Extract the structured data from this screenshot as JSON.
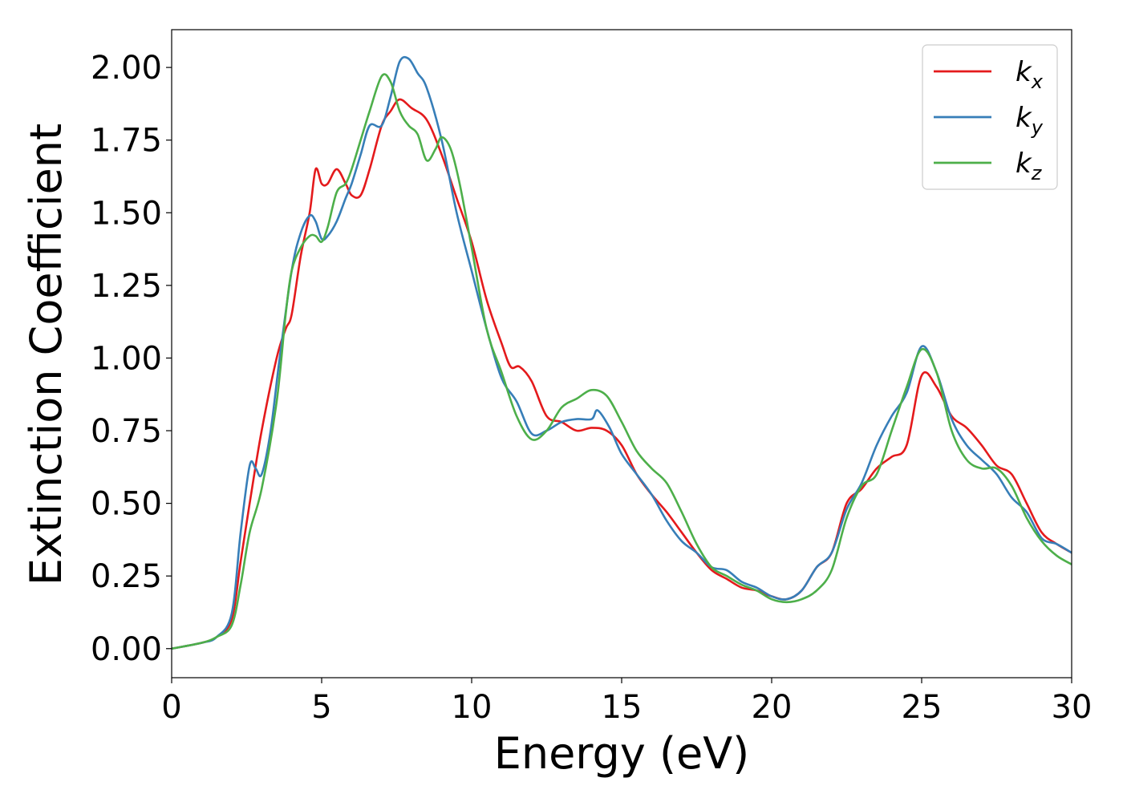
{
  "chart_data": {
    "type": "line",
    "xlabel": "Energy (eV)",
    "ylabel": "Extinction Coefficient",
    "xlim": [
      0,
      30
    ],
    "ylim": [
      -0.1,
      2.13
    ],
    "xticks": [
      0,
      5,
      10,
      15,
      20,
      25,
      30
    ],
    "xtick_labels": [
      "0",
      "5",
      "10",
      "15",
      "20",
      "25",
      "30"
    ],
    "yticks": [
      0,
      0.25,
      0.5,
      0.75,
      1.0,
      1.25,
      1.5,
      1.75,
      2.0
    ],
    "ytick_labels": [
      "0.00",
      "0.25",
      "0.50",
      "0.75",
      "1.00",
      "1.25",
      "1.50",
      "1.75",
      "2.00"
    ],
    "grid": false,
    "legend_position": "top-right",
    "series": [
      {
        "name": "k",
        "name_sub": "x",
        "color": "#e41a1c",
        "x": [
          0,
          1,
          1.5,
          2,
          2.3,
          2.6,
          3,
          3.5,
          3.8,
          4,
          4.3,
          4.6,
          4.8,
          5,
          5.2,
          5.5,
          5.8,
          6,
          6.3,
          6.6,
          7,
          7.3,
          7.6,
          8,
          8.5,
          9,
          9.5,
          10,
          10.5,
          11,
          11.3,
          11.6,
          12,
          12.5,
          13,
          13.5,
          14,
          14.5,
          15,
          15.5,
          16,
          16.5,
          17,
          17.5,
          18,
          18.5,
          19,
          19.5,
          20,
          20.5,
          21,
          21.5,
          22,
          22.5,
          23,
          23.5,
          24,
          24.5,
          25,
          25.5,
          26,
          26.5,
          27,
          27.5,
          28,
          28.5,
          29,
          29.5,
          30
        ],
        "y": [
          0,
          0.02,
          0.04,
          0.1,
          0.3,
          0.5,
          0.75,
          1.0,
          1.1,
          1.15,
          1.35,
          1.5,
          1.65,
          1.6,
          1.6,
          1.65,
          1.6,
          1.56,
          1.56,
          1.65,
          1.8,
          1.85,
          1.89,
          1.86,
          1.82,
          1.7,
          1.55,
          1.4,
          1.2,
          1.05,
          0.97,
          0.97,
          0.92,
          0.8,
          0.78,
          0.75,
          0.76,
          0.75,
          0.7,
          0.6,
          0.53,
          0.47,
          0.4,
          0.33,
          0.27,
          0.24,
          0.21,
          0.2,
          0.18,
          0.17,
          0.2,
          0.28,
          0.33,
          0.5,
          0.55,
          0.62,
          0.66,
          0.7,
          0.94,
          0.9,
          0.8,
          0.76,
          0.7,
          0.63,
          0.6,
          0.5,
          0.4,
          0.36,
          0.33
        ]
      },
      {
        "name": "k",
        "name_sub": "y",
        "color": "#377eb8",
        "x": [
          0,
          1,
          1.5,
          2,
          2.3,
          2.6,
          2.8,
          3,
          3.3,
          3.6,
          4,
          4.3,
          4.6,
          4.8,
          5,
          5.2,
          5.5,
          5.8,
          6,
          6.3,
          6.6,
          7,
          7.3,
          7.6,
          7.9,
          8.2,
          8.5,
          9,
          9.5,
          10,
          10.5,
          11,
          11.5,
          12,
          12.5,
          13,
          13.5,
          14,
          14.2,
          14.6,
          15,
          15.5,
          16,
          16.5,
          17,
          17.5,
          18,
          18.5,
          19,
          19.5,
          20,
          20.5,
          21,
          21.5,
          22,
          22.5,
          23,
          23.5,
          24,
          24.5,
          25,
          25.5,
          26,
          26.5,
          27,
          27.5,
          28,
          28.5,
          29,
          29.5,
          30
        ],
        "y": [
          0,
          0.02,
          0.04,
          0.12,
          0.4,
          0.63,
          0.62,
          0.6,
          0.75,
          1.0,
          1.3,
          1.43,
          1.49,
          1.47,
          1.41,
          1.42,
          1.47,
          1.55,
          1.6,
          1.7,
          1.8,
          1.8,
          1.9,
          2.02,
          2.03,
          1.98,
          1.93,
          1.75,
          1.5,
          1.3,
          1.1,
          0.93,
          0.85,
          0.74,
          0.75,
          0.78,
          0.79,
          0.79,
          0.82,
          0.76,
          0.67,
          0.6,
          0.53,
          0.44,
          0.37,
          0.33,
          0.28,
          0.27,
          0.23,
          0.21,
          0.18,
          0.17,
          0.2,
          0.28,
          0.33,
          0.48,
          0.57,
          0.7,
          0.8,
          0.88,
          1.04,
          0.95,
          0.79,
          0.7,
          0.65,
          0.6,
          0.52,
          0.47,
          0.38,
          0.36,
          0.33
        ]
      },
      {
        "name": "k",
        "name_sub": "z",
        "color": "#4daf4a",
        "x": [
          0,
          1,
          1.5,
          2,
          2.3,
          2.6,
          3,
          3.5,
          3.8,
          4,
          4.3,
          4.6,
          4.8,
          5,
          5.2,
          5.5,
          5.8,
          6,
          6.3,
          6.6,
          7,
          7.3,
          7.6,
          7.9,
          8.2,
          8.5,
          8.8,
          9,
          9.3,
          9.6,
          10,
          10.5,
          11,
          11.5,
          12,
          12.5,
          13,
          13.5,
          14,
          14.5,
          15,
          15.5,
          16,
          16.5,
          17,
          17.5,
          18,
          18.5,
          19,
          19.5,
          20,
          20.5,
          21,
          21.5,
          22,
          22.5,
          23,
          23.5,
          24,
          24.5,
          25,
          25.5,
          26,
          26.5,
          27,
          27.5,
          28,
          28.5,
          29,
          29.5,
          30
        ],
        "y": [
          0,
          0.02,
          0.04,
          0.08,
          0.22,
          0.4,
          0.55,
          0.85,
          1.15,
          1.3,
          1.38,
          1.42,
          1.42,
          1.4,
          1.45,
          1.57,
          1.6,
          1.65,
          1.75,
          1.85,
          1.97,
          1.95,
          1.85,
          1.8,
          1.77,
          1.68,
          1.72,
          1.76,
          1.72,
          1.6,
          1.38,
          1.1,
          0.95,
          0.8,
          0.72,
          0.75,
          0.83,
          0.86,
          0.89,
          0.87,
          0.78,
          0.68,
          0.62,
          0.57,
          0.47,
          0.36,
          0.28,
          0.25,
          0.22,
          0.2,
          0.17,
          0.16,
          0.17,
          0.2,
          0.27,
          0.45,
          0.56,
          0.6,
          0.75,
          0.9,
          1.03,
          0.95,
          0.75,
          0.65,
          0.62,
          0.62,
          0.56,
          0.45,
          0.37,
          0.32,
          0.29
        ]
      }
    ]
  }
}
